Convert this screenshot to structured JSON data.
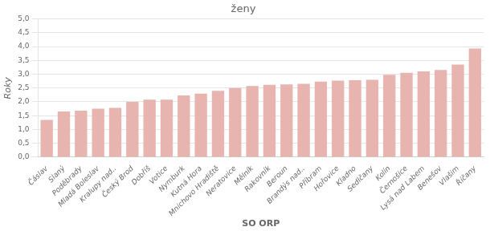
{
  "chart_data": {
    "type": "bar",
    "title": "ženy",
    "xlabel": "SO ORP",
    "ylabel": "Roky",
    "categories": [
      "Čáslav",
      "Slaný",
      "Poděbrady",
      "Mladá Boleslav",
      "Kralupy nad..",
      "Český Brod",
      "Dobříš",
      "Votice",
      "Nymburk",
      "Kutná Hora",
      "Mnichovo Hradiště",
      "Neratovice",
      "Mělník",
      "Rakovník",
      "Beroun",
      "Brandýs nad..",
      "Příbram",
      "Hořovice",
      "Kladno",
      "Sedlčany",
      "Kolín",
      "Černošice",
      "Lysá nad Labem",
      "Benešov",
      "Vlašim",
      "Říčany"
    ],
    "values": [
      1.35,
      1.65,
      1.68,
      1.75,
      1.78,
      2.0,
      2.08,
      2.08,
      2.23,
      2.3,
      2.4,
      2.5,
      2.57,
      2.62,
      2.63,
      2.65,
      2.73,
      2.77,
      2.78,
      2.8,
      2.98,
      3.05,
      3.1,
      3.15,
      3.35,
      3.93
    ],
    "color": "#e8b4b0",
    "ylim": [
      0,
      5.0
    ],
    "yticks": [
      {
        "value": 0.0,
        "label": "0,0"
      },
      {
        "value": 0.5,
        "label": "0,5"
      },
      {
        "value": 1.0,
        "label": "1,0"
      },
      {
        "value": 1.5,
        "label": "1,5"
      },
      {
        "value": 2.0,
        "label": "2,0"
      },
      {
        "value": 2.5,
        "label": "2,5"
      },
      {
        "value": 3.0,
        "label": "3,0"
      },
      {
        "value": 3.5,
        "label": "3,5"
      },
      {
        "value": 4.0,
        "label": "4,0"
      },
      {
        "value": 4.5,
        "label": "4,5"
      },
      {
        "value": 5.0,
        "label": "5,0"
      }
    ],
    "grid": true
  }
}
